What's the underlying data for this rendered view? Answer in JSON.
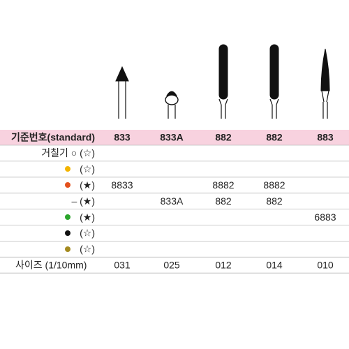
{
  "table": {
    "header": [
      "기준번호(standard)",
      "833",
      "833A",
      "882",
      "882",
      "883"
    ],
    "rows": [
      [
        "거칠기 ○ (☆)",
        null,
        null,
        null,
        null,
        null
      ],
      [
        "(☆)",
        null,
        null,
        null,
        null,
        null
      ],
      [
        "(★)",
        "8833",
        null,
        "8882",
        "8882",
        null
      ],
      [
        "– (★)",
        null,
        "833A",
        "882",
        "882",
        null
      ],
      [
        "(★)",
        null,
        null,
        null,
        null,
        "6883"
      ],
      [
        "(☆)",
        null,
        null,
        null,
        null,
        null
      ],
      [
        "(☆)",
        null,
        null,
        null,
        null,
        null
      ],
      [
        "사이즈 (1/10mm)",
        "031",
        "025",
        "012",
        "014",
        "010"
      ]
    ]
  }
}
